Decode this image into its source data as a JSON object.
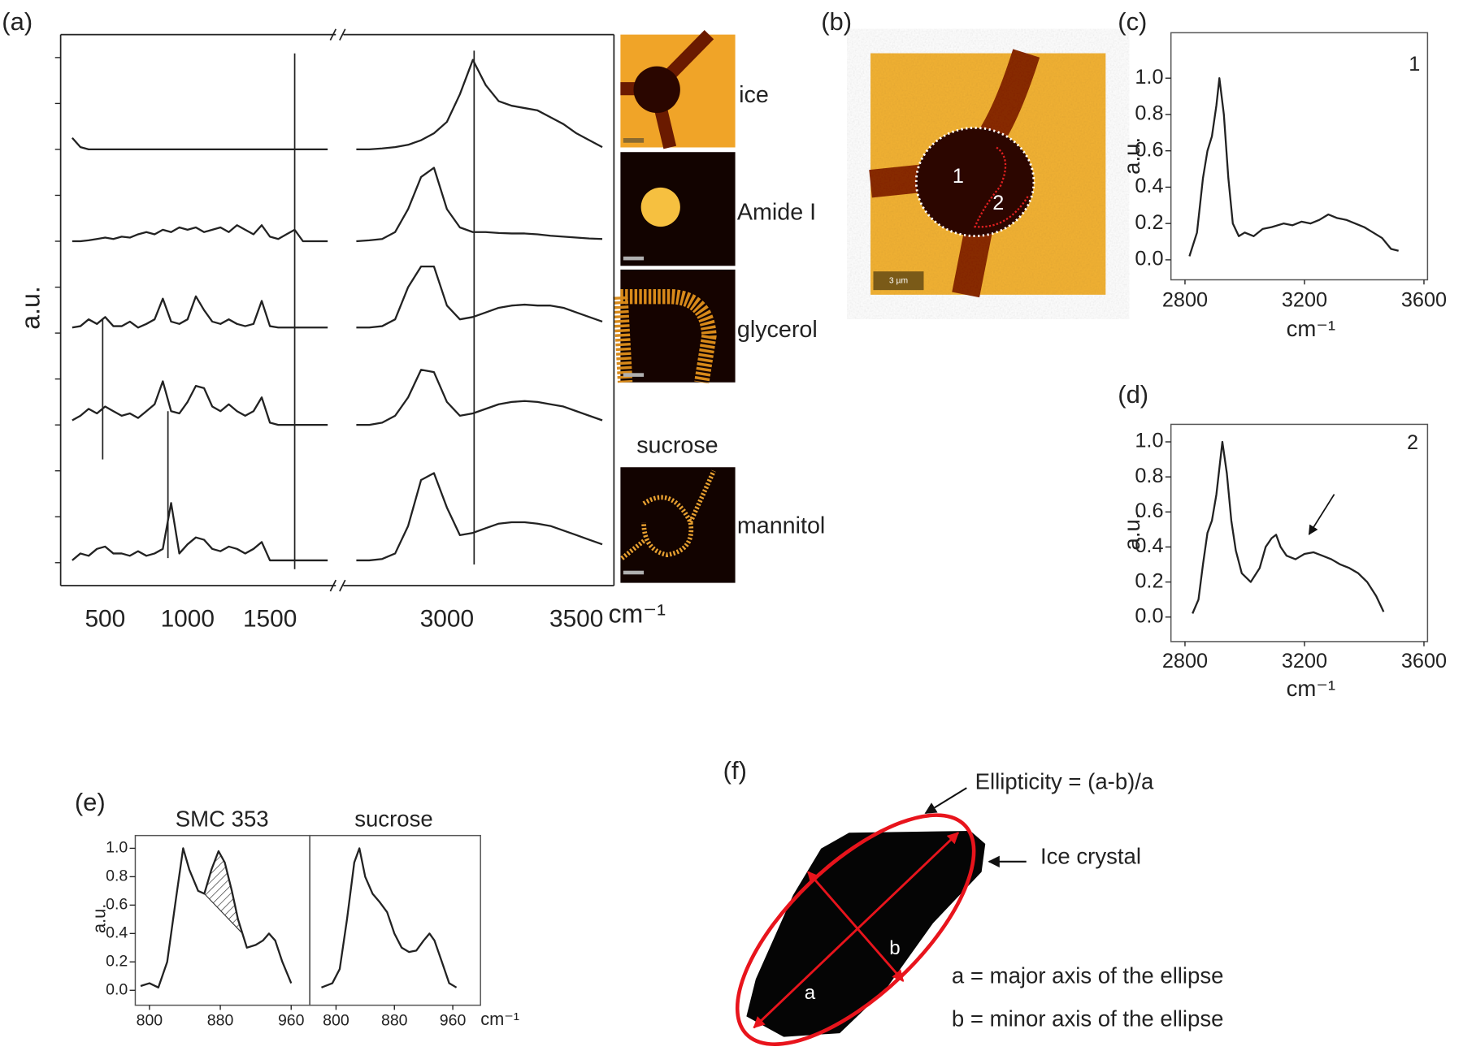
{
  "chart_data": [
    {
      "type": "line",
      "label": "(a)",
      "y_label": "a.u.",
      "x_label": "cm⁻¹",
      "x": [
        300,
        350,
        400,
        450,
        500,
        550,
        600,
        650,
        700,
        750,
        800,
        850,
        900,
        950,
        1000,
        1050,
        1100,
        1150,
        1200,
        1250,
        1300,
        1350,
        1400,
        1450,
        1500,
        1550,
        1600,
        1650,
        1700,
        1750,
        1800,
        1850,
        2650,
        2700,
        2750,
        2800,
        2850,
        2900,
        2950,
        3000,
        3050,
        3100,
        3150,
        3200,
        3250,
        3300,
        3350,
        3400,
        3450,
        3500,
        3550,
        3600
      ],
      "xlim": [
        230,
        3645
      ],
      "xbreak": [
        1900,
        2600
      ],
      "xticks": [
        500,
        1000,
        1500,
        3000,
        3500
      ],
      "ylim": [
        -0.5,
        11.5
      ],
      "yticks": [
        0,
        1,
        2,
        3,
        4,
        5,
        6,
        7,
        8,
        9,
        10,
        11
      ],
      "ytick_labels": false,
      "series": [
        {
          "name": "ice",
          "color": "#222222",
          "values": [
            9.25,
            9.05,
            9.0,
            9.0,
            9.0,
            9.0,
            9.0,
            9.0,
            9.0,
            9.0,
            9.0,
            9.0,
            9.0,
            9.0,
            9.0,
            9.0,
            9.0,
            9.0,
            9.0,
            9.0,
            9.0,
            9.0,
            9.0,
            9.0,
            9.0,
            9.0,
            9.0,
            9.0,
            9.0,
            9.0,
            9.0,
            9.0,
            9.0,
            9.0,
            9.02,
            9.05,
            9.1,
            9.2,
            9.35,
            9.6,
            10.2,
            10.95,
            10.4,
            10.05,
            9.95,
            9.9,
            9.85,
            9.7,
            9.55,
            9.35,
            9.2,
            9.05
          ]
        },
        {
          "name": "Amide I",
          "color": "#222222",
          "values": [
            7.0,
            7.0,
            7.02,
            7.05,
            7.08,
            7.05,
            7.1,
            7.08,
            7.15,
            7.2,
            7.15,
            7.25,
            7.2,
            7.3,
            7.25,
            7.3,
            7.2,
            7.25,
            7.3,
            7.2,
            7.35,
            7.25,
            7.15,
            7.35,
            7.1,
            7.05,
            7.15,
            7.25,
            7.0,
            7.0,
            7.0,
            7.0,
            7.0,
            7.02,
            7.05,
            7.2,
            7.7,
            8.4,
            8.6,
            7.7,
            7.3,
            7.2,
            7.2,
            7.18,
            7.17,
            7.17,
            7.15,
            7.12,
            7.1,
            7.08,
            7.06,
            7.05
          ]
        },
        {
          "name": "glycerol",
          "color": "#222222",
          "values": [
            5.12,
            5.15,
            5.3,
            5.2,
            5.35,
            5.15,
            5.15,
            5.25,
            5.12,
            5.2,
            5.3,
            5.75,
            5.25,
            5.2,
            5.3,
            5.8,
            5.5,
            5.25,
            5.2,
            5.3,
            5.2,
            5.15,
            5.2,
            5.7,
            5.15,
            5.12,
            5.12,
            5.12,
            5.12,
            5.12,
            5.12,
            5.12,
            5.12,
            5.12,
            5.15,
            5.3,
            6.0,
            6.45,
            6.45,
            5.6,
            5.3,
            5.35,
            5.45,
            5.55,
            5.6,
            5.62,
            5.6,
            5.6,
            5.55,
            5.45,
            5.35,
            5.25
          ]
        },
        {
          "name": "sucrose",
          "color": "#222222",
          "values": [
            3.1,
            3.2,
            3.35,
            3.25,
            3.4,
            3.3,
            3.2,
            3.25,
            3.15,
            3.3,
            3.45,
            3.95,
            3.3,
            3.25,
            3.5,
            3.85,
            3.8,
            3.4,
            3.3,
            3.45,
            3.3,
            3.2,
            3.3,
            3.6,
            3.05,
            3.0,
            3.0,
            3.0,
            3.0,
            3.0,
            3.0,
            3.0,
            3.0,
            3.0,
            3.05,
            3.2,
            3.6,
            4.2,
            4.15,
            3.5,
            3.2,
            3.25,
            3.35,
            3.45,
            3.5,
            3.52,
            3.5,
            3.45,
            3.4,
            3.3,
            3.2,
            3.1
          ]
        },
        {
          "name": "mannitol",
          "color": "#222222",
          "values": [
            0.05,
            0.2,
            0.15,
            0.3,
            0.35,
            0.2,
            0.2,
            0.15,
            0.25,
            0.15,
            0.2,
            0.3,
            1.3,
            0.2,
            0.4,
            0.55,
            0.5,
            0.3,
            0.25,
            0.35,
            0.3,
            0.2,
            0.3,
            0.45,
            0.05,
            0.05,
            0.05,
            0.05,
            0.05,
            0.05,
            0.05,
            0.05,
            0.05,
            0.05,
            0.08,
            0.2,
            0.8,
            1.8,
            1.95,
            1.2,
            0.6,
            0.65,
            0.75,
            0.85,
            0.88,
            0.88,
            0.85,
            0.8,
            0.7,
            0.6,
            0.5,
            0.4
          ]
        }
      ],
      "vlines": [
        {
          "x": 485,
          "y": [
            2.25,
            5.32
          ]
        },
        {
          "x": 881,
          "y": [
            0.1,
            3.3
          ]
        },
        {
          "x": 1650,
          "y": [
            -0.14,
            11.09
          ]
        },
        {
          "x": 3105,
          "y": [
            -0.04,
            11.15
          ]
        }
      ]
    },
    {
      "type": "line",
      "label": "(c)",
      "y_label": "a.u.",
      "x_label": "cm⁻¹",
      "annotation": "1",
      "color": "#222222",
      "x": [
        2815,
        2840,
        2860,
        2875,
        2890,
        2905,
        2915,
        2930,
        2945,
        2960,
        2980,
        3000,
        3030,
        3060,
        3090,
        3130,
        3160,
        3190,
        3220,
        3250,
        3280,
        3310,
        3340,
        3370,
        3400,
        3430,
        3460,
        3490,
        3515
      ],
      "values": [
        0.02,
        0.15,
        0.45,
        0.6,
        0.68,
        0.85,
        1.0,
        0.8,
        0.45,
        0.2,
        0.13,
        0.15,
        0.13,
        0.17,
        0.18,
        0.2,
        0.19,
        0.21,
        0.2,
        0.22,
        0.25,
        0.23,
        0.22,
        0.2,
        0.18,
        0.15,
        0.12,
        0.06,
        0.05
      ],
      "xlim": [
        2753,
        3612
      ],
      "xticks": [
        2800,
        3200,
        3600
      ],
      "ylim": [
        -0.11,
        1.25
      ],
      "yticks": [
        {
          "value": 0,
          "label": "0.0"
        },
        0.2,
        0.4,
        0.6,
        0.8,
        {
          "value": 1,
          "label": "1.0"
        }
      ]
    },
    {
      "type": "line",
      "label": "(d)",
      "y_label": "a.u.",
      "x_label": "cm⁻¹",
      "annotation": "2",
      "color": "#222222",
      "x": [
        2825,
        2845,
        2860,
        2875,
        2890,
        2905,
        2915,
        2925,
        2940,
        2955,
        2970,
        2990,
        3020,
        3050,
        3070,
        3090,
        3105,
        3120,
        3140,
        3170,
        3200,
        3230,
        3260,
        3290,
        3320,
        3350,
        3380,
        3410,
        3440,
        3465
      ],
      "values": [
        0.02,
        0.1,
        0.3,
        0.48,
        0.55,
        0.7,
        0.85,
        1.0,
        0.82,
        0.55,
        0.38,
        0.25,
        0.2,
        0.28,
        0.4,
        0.45,
        0.47,
        0.4,
        0.35,
        0.33,
        0.36,
        0.37,
        0.35,
        0.33,
        0.3,
        0.28,
        0.25,
        0.2,
        0.12,
        0.03
      ],
      "xlim": [
        2753,
        3612
      ],
      "xticks": [
        2800,
        3200,
        3600
      ],
      "ylim": [
        -0.14,
        1.1
      ],
      "yticks": [
        {
          "value": 0,
          "label": "0.0"
        },
        0.2,
        0.4,
        0.6,
        0.8,
        {
          "value": 1,
          "label": "1.0"
        }
      ]
    },
    {
      "type": "line",
      "label": "(e)",
      "title": "SMC 353",
      "y_label": "a.u.",
      "color": "#222222",
      "x": [
        790,
        800,
        810,
        820,
        830,
        838,
        845,
        855,
        862,
        870,
        878,
        885,
        893,
        900,
        910,
        920,
        928,
        935,
        942,
        950,
        960
      ],
      "values": [
        0.03,
        0.05,
        0.02,
        0.2,
        0.65,
        1.0,
        0.85,
        0.7,
        0.68,
        0.85,
        0.98,
        0.9,
        0.7,
        0.5,
        0.3,
        0.32,
        0.35,
        0.4,
        0.35,
        0.2,
        0.05
      ],
      "hatch": [
        862,
        905
      ],
      "xlim": [
        784,
        981
      ],
      "xticks": [
        800,
        880,
        960
      ],
      "ylim": [
        -0.105,
        1.09
      ],
      "yticks": [
        {
          "value": 0,
          "label": "0.0"
        },
        0.2,
        0.4,
        0.6,
        0.8,
        {
          "value": 1,
          "label": "1.0"
        }
      ]
    },
    {
      "type": "line",
      "title": "sucrose",
      "x_label": "cm⁻¹",
      "color": "#222222",
      "x": [
        780,
        795,
        805,
        815,
        825,
        832,
        840,
        850,
        860,
        870,
        880,
        890,
        900,
        910,
        920,
        928,
        935,
        945,
        955,
        965
      ],
      "values": [
        0.02,
        0.05,
        0.15,
        0.5,
        0.9,
        1.0,
        0.8,
        0.68,
        0.62,
        0.55,
        0.4,
        0.3,
        0.27,
        0.28,
        0.35,
        0.4,
        0.35,
        0.2,
        0.05,
        0.02
      ],
      "xlim": [
        764,
        998
      ],
      "xticks": [
        800,
        880,
        960
      ],
      "ylim": [
        -0.105,
        1.09
      ]
    }
  ],
  "micrograph": {
    "label": "(b)",
    "regions": [
      "1",
      "2"
    ],
    "scale_bar": "3 µm"
  },
  "diagram": {
    "label": "(f)",
    "formula": "Ellipticity = (a-b)/a",
    "object": "Ice crystal",
    "axis_a": "a",
    "axis_b": "b",
    "legend": [
      "a = major axis of the ellipse",
      "b = minor axis of the ellipse"
    ]
  }
}
